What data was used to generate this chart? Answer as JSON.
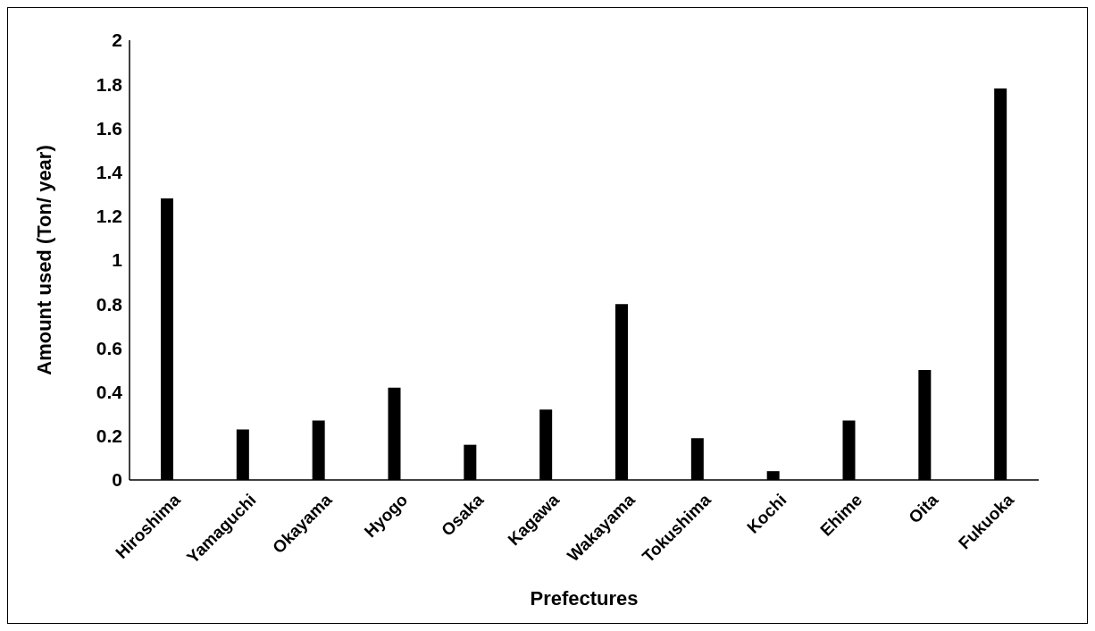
{
  "chart_data": {
    "type": "bar",
    "xlabel": "Prefectures",
    "ylabel": "Amount used (Ton/ year)",
    "categories": [
      "Hiroshima",
      "Yamaguchi",
      "Okayama",
      "Hyogo",
      "Osaka",
      "Kagawa",
      "Wakayama",
      "Tokushima",
      "Kochi",
      "Ehime",
      "Oita",
      "Fukuoka"
    ],
    "values": [
      1.28,
      0.23,
      0.27,
      0.42,
      0.16,
      0.32,
      0.8,
      0.19,
      0.04,
      0.27,
      0.5,
      1.78
    ],
    "color": "#000000",
    "ylim": [
      0,
      2
    ],
    "yticks": [
      0,
      0.2,
      0.4,
      0.6,
      0.8,
      1,
      1.2,
      1.4,
      1.6,
      1.8,
      2
    ],
    "grid": false,
    "legend": false
  }
}
